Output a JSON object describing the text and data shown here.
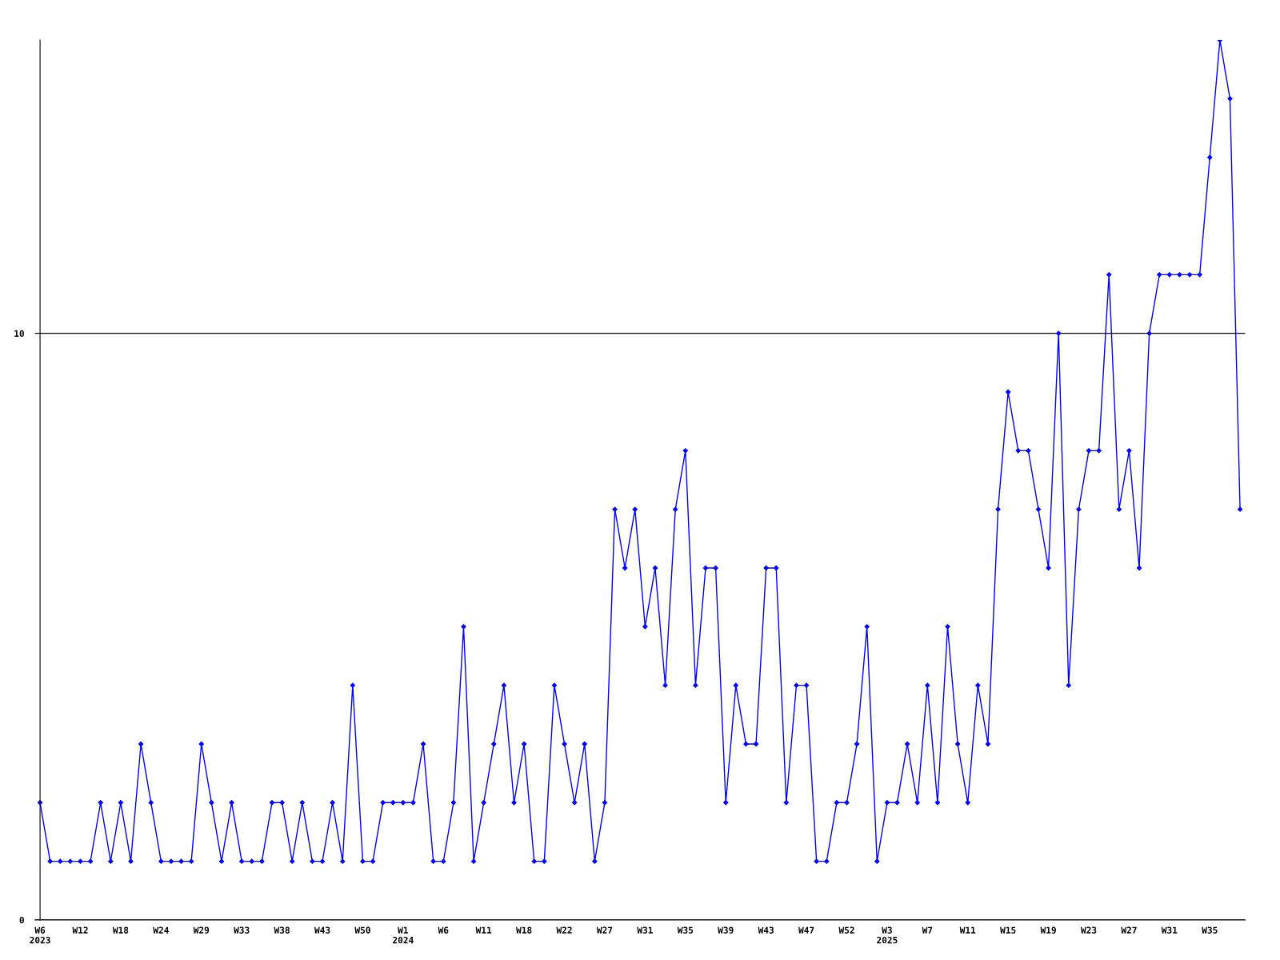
{
  "chart_data": {
    "type": "line",
    "marker": "diamond",
    "line_style": "solid",
    "grid": "y",
    "categories": [
      "W6\n2023",
      null,
      null,
      null,
      "W12",
      null,
      null,
      null,
      "W18",
      null,
      null,
      null,
      "W24",
      null,
      null,
      null,
      "W29",
      null,
      null,
      null,
      "W33",
      null,
      null,
      null,
      "W38",
      null,
      null,
      null,
      "W43",
      null,
      null,
      null,
      "W50",
      null,
      null,
      null,
      "W1\n2024",
      null,
      null,
      null,
      "W6",
      null,
      null,
      null,
      "W11",
      null,
      null,
      null,
      "W18",
      null,
      null,
      null,
      "W22",
      null,
      null,
      null,
      "W27",
      null,
      null,
      null,
      "W31",
      null,
      null,
      null,
      "W35",
      null,
      null,
      null,
      "W39",
      null,
      null,
      null,
      "W43",
      null,
      null,
      null,
      "W47",
      null,
      null,
      null,
      "W52",
      null,
      null,
      null,
      "W3\n2025",
      null,
      null,
      null,
      "W7",
      null,
      null,
      null,
      "W11",
      null,
      null,
      null,
      "W15",
      null,
      null,
      null,
      "W19",
      null,
      null,
      null,
      "W23",
      null,
      null,
      null,
      "W27",
      null,
      null,
      null,
      "W31",
      null,
      null,
      null,
      "W35",
      null,
      null,
      null
    ],
    "series": [
      {
        "color": "#0000ff",
        "values": [
          2,
          1,
          1,
          1,
          1,
          1,
          2,
          1,
          2,
          1,
          3,
          2,
          1,
          1,
          1,
          1,
          3,
          2,
          1,
          2,
          1,
          1,
          1,
          2,
          2,
          1,
          2,
          1,
          1,
          2,
          1,
          4,
          1,
          1,
          2,
          2,
          2,
          2,
          3,
          1,
          1,
          2,
          5,
          1,
          2,
          3,
          4,
          2,
          3,
          1,
          1,
          4,
          3,
          2,
          3,
          1,
          2,
          7,
          6,
          7,
          5,
          6,
          4,
          7,
          8,
          4,
          6,
          6,
          2,
          4,
          3,
          3,
          6,
          6,
          2,
          4,
          4,
          1,
          1,
          2,
          2,
          3,
          5,
          1,
          2,
          2,
          3,
          2,
          4,
          2,
          5,
          3,
          2,
          4,
          3,
          7,
          9,
          8,
          8,
          7,
          6,
          10,
          4,
          7,
          8,
          8,
          11,
          7,
          8,
          6,
          10,
          11,
          11,
          11,
          11,
          11,
          13,
          15,
          14,
          7
        ]
      }
    ],
    "ylim": [
      0,
      15
    ],
    "yticks": [
      0,
      10
    ]
  }
}
